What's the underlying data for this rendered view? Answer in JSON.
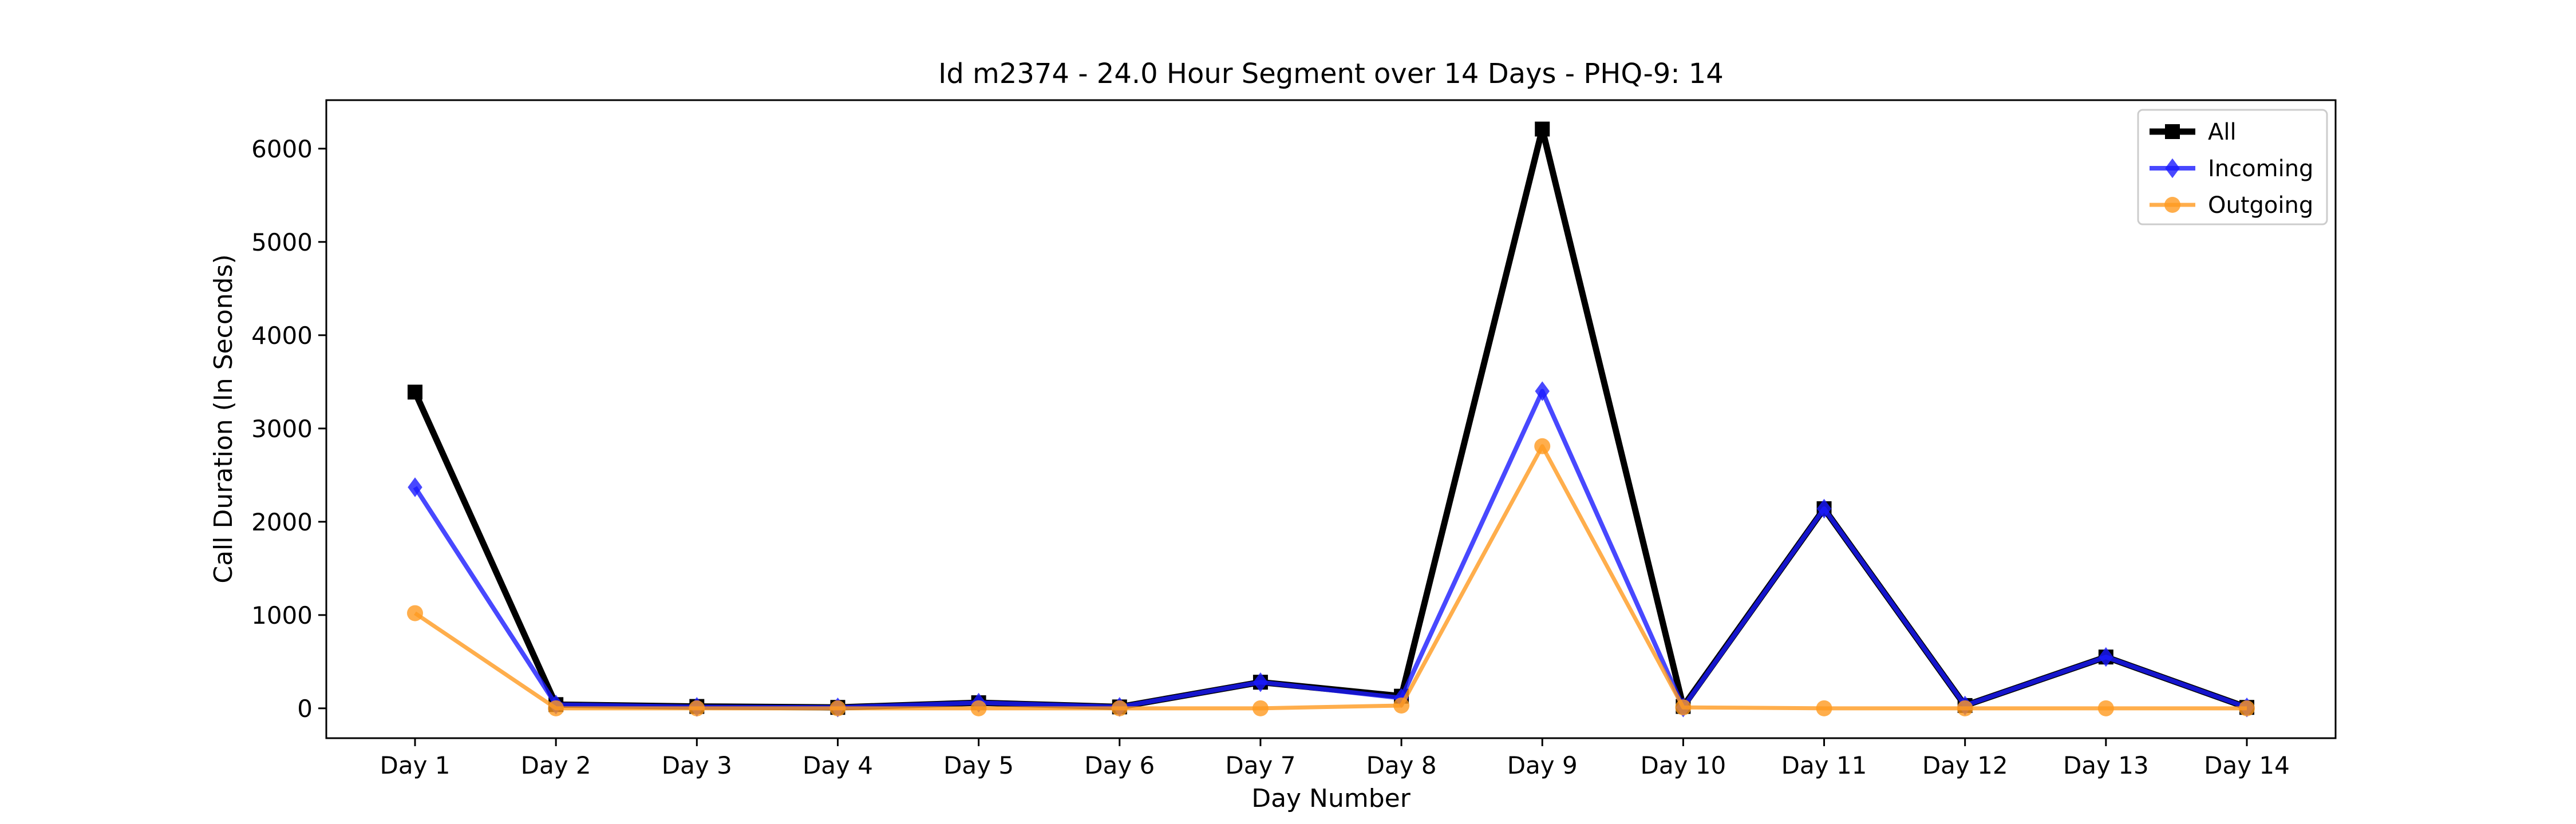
{
  "chart_data": {
    "type": "line",
    "title": "Id m2374 - 24.0 Hour Segment over 14 Days - PHQ-9: 14",
    "xlabel": "Day Number",
    "ylabel": "Call Duration (In Seconds)",
    "categories": [
      "Day 1",
      "Day 2",
      "Day 3",
      "Day 4",
      "Day 5",
      "Day 6",
      "Day 7",
      "Day 8",
      "Day 9",
      "Day 10",
      "Day 11",
      "Day 12",
      "Day 13",
      "Day 14"
    ],
    "ylim": [
      -320,
      6520
    ],
    "yticks": [
      0,
      1000,
      2000,
      3000,
      4000,
      5000,
      6000
    ],
    "grid": false,
    "legend_position": "top-right",
    "series": [
      {
        "name": "All",
        "color": "#000000",
        "marker": "square",
        "values": [
          3390,
          40,
          20,
          10,
          60,
          15,
          280,
          130,
          6210,
          20,
          2140,
          30,
          550,
          10
        ]
      },
      {
        "name": "Incoming",
        "color": "#1a1aff",
        "marker": "diamond",
        "values": [
          2370,
          40,
          15,
          10,
          60,
          15,
          280,
          110,
          3400,
          10,
          2140,
          30,
          550,
          10
        ]
      },
      {
        "name": "Outgoing",
        "color": "#ff9a1f",
        "marker": "circle",
        "values": [
          1020,
          0,
          0,
          0,
          0,
          0,
          0,
          30,
          2810,
          10,
          0,
          0,
          0,
          0
        ]
      }
    ]
  }
}
